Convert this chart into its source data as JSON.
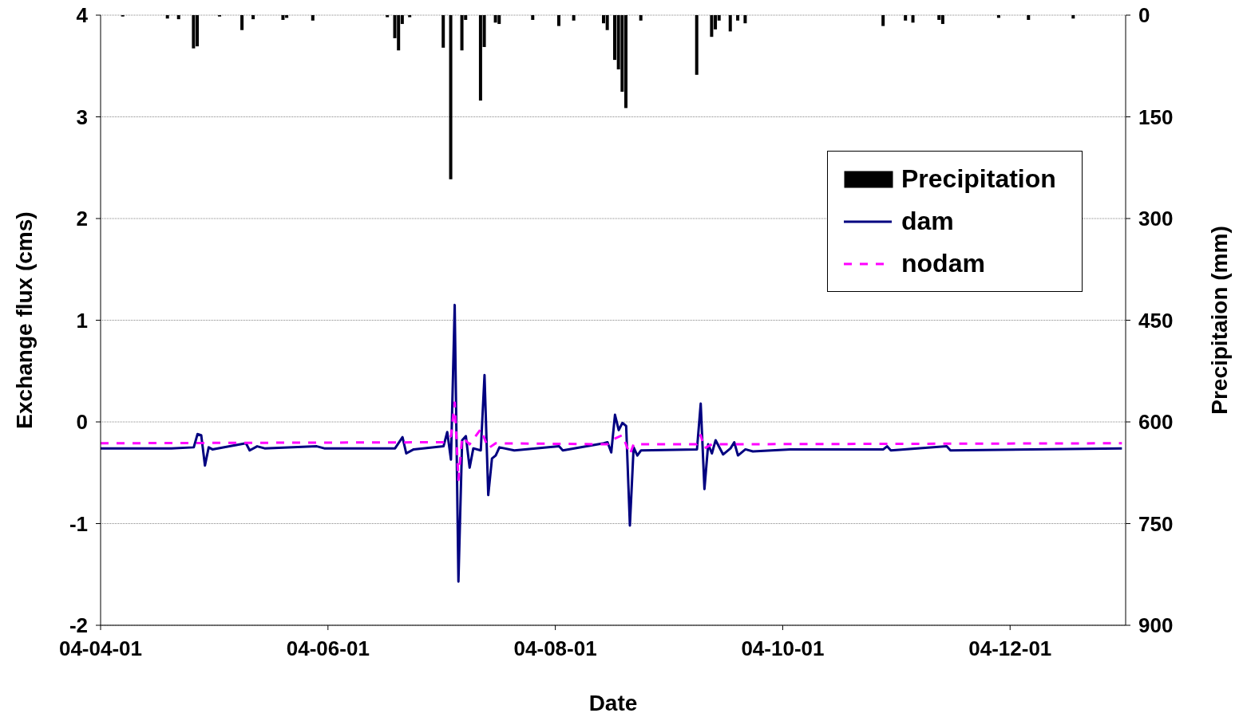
{
  "chart_data": {
    "type": "line",
    "xlabel": "Date",
    "ylabel": "Exchange flux (cms)",
    "y2label": "Precipitaion (mm)",
    "xlim": [
      "2004-04-01",
      "2005-01-01"
    ],
    "xticks": [
      {
        "value": "2004-04-01",
        "label": "04-04-01"
      },
      {
        "value": "2004-06-01",
        "label": "04-06-01"
      },
      {
        "value": "2004-08-01",
        "label": "04-08-01"
      },
      {
        "value": "2004-10-01",
        "label": "04-10-01"
      },
      {
        "value": "2004-12-01",
        "label": "04-12-01"
      }
    ],
    "ylim": [
      -2,
      4
    ],
    "yticks": [
      -2,
      -1,
      0,
      1,
      2,
      3,
      4
    ],
    "y2lim": [
      900,
      0
    ],
    "y2ticks": [
      0,
      150,
      300,
      450,
      600,
      750,
      900
    ],
    "grid": "y",
    "legend": "top right",
    "marker": "none",
    "series": [
      {
        "name": "Precipitation",
        "type": "bar",
        "axis": "y2",
        "color": "#000000",
        "x": [
          "2004-04-07",
          "2004-04-19",
          "2004-04-22",
          "2004-04-26",
          "2004-04-27",
          "2004-05-03",
          "2004-05-09",
          "2004-05-12",
          "2004-05-20",
          "2004-05-21",
          "2004-05-28",
          "2004-06-17",
          "2004-06-19",
          "2004-06-20",
          "2004-06-21",
          "2004-06-23",
          "2004-07-02",
          "2004-07-04",
          "2004-07-07",
          "2004-07-08",
          "2004-07-12",
          "2004-07-13",
          "2004-07-16",
          "2004-07-17",
          "2004-07-26",
          "2004-08-02",
          "2004-08-06",
          "2004-08-14",
          "2004-08-15",
          "2004-08-17",
          "2004-08-18",
          "2004-08-19",
          "2004-08-20",
          "2004-08-24",
          "2004-09-08",
          "2004-09-12",
          "2004-09-13",
          "2004-09-14",
          "2004-09-17",
          "2004-09-19",
          "2004-09-21",
          "2004-10-28",
          "2004-11-03",
          "2004-11-05",
          "2004-11-12",
          "2004-11-13",
          "2004-11-28",
          "2004-12-06",
          "2004-12-18"
        ],
        "values": [
          2,
          5,
          6,
          49,
          46,
          2,
          22,
          6,
          7,
          4,
          8,
          3,
          34,
          52,
          13,
          3,
          48,
          242,
          52,
          7,
          126,
          47,
          11,
          13,
          7,
          16,
          8,
          12,
          22,
          66,
          80,
          113,
          137,
          8,
          88,
          32,
          21,
          8,
          24,
          8,
          12,
          16,
          8,
          11,
          7,
          13,
          4,
          7,
          5
        ]
      },
      {
        "name": "dam",
        "color": "#000080",
        "line_style": "solid",
        "x": [
          "2004-04-01",
          "2004-04-20",
          "2004-04-26",
          "2004-04-27",
          "2004-04-28",
          "2004-04-29",
          "2004-04-30",
          "2004-05-01",
          "2004-05-10",
          "2004-05-11",
          "2004-05-13",
          "2004-05-15",
          "2004-05-29",
          "2004-05-31",
          "2004-06-19",
          "2004-06-21",
          "2004-06-22",
          "2004-06-24",
          "2004-07-02",
          "2004-07-03",
          "2004-07-04",
          "2004-07-05",
          "2004-07-06",
          "2004-07-07",
          "2004-07-08",
          "2004-07-09",
          "2004-07-10",
          "2004-07-12",
          "2004-07-13",
          "2004-07-14",
          "2004-07-15",
          "2004-07-16",
          "2004-07-17",
          "2004-07-21",
          "2004-08-02",
          "2004-08-03",
          "2004-08-14",
          "2004-08-15",
          "2004-08-16",
          "2004-08-17",
          "2004-08-18",
          "2004-08-19",
          "2004-08-20",
          "2004-08-21",
          "2004-08-22",
          "2004-08-23",
          "2004-08-24",
          "2004-09-08",
          "2004-09-09",
          "2004-09-10",
          "2004-09-11",
          "2004-09-12",
          "2004-09-13",
          "2004-09-15",
          "2004-09-17",
          "2004-09-18",
          "2004-09-19",
          "2004-09-21",
          "2004-09-23",
          "2004-10-03",
          "2004-10-28",
          "2004-10-29",
          "2004-10-30",
          "2004-11-14",
          "2004-11-15",
          "2004-12-31"
        ],
        "values": [
          -0.26,
          -0.26,
          -0.25,
          -0.12,
          -0.13,
          -0.43,
          -0.25,
          -0.27,
          -0.21,
          -0.28,
          -0.24,
          -0.26,
          -0.24,
          -0.26,
          -0.26,
          -0.15,
          -0.31,
          -0.27,
          -0.24,
          -0.1,
          -0.37,
          1.15,
          -1.57,
          -0.18,
          -0.14,
          -0.45,
          -0.26,
          -0.28,
          0.46,
          -0.72,
          -0.36,
          -0.33,
          -0.25,
          -0.28,
          -0.24,
          -0.28,
          -0.21,
          -0.2,
          -0.3,
          0.07,
          -0.08,
          -0.01,
          -0.04,
          -1.02,
          -0.25,
          -0.33,
          -0.28,
          -0.27,
          0.18,
          -0.66,
          -0.22,
          -0.31,
          -0.18,
          -0.32,
          -0.26,
          -0.2,
          -0.33,
          -0.27,
          -0.29,
          -0.27,
          -0.27,
          -0.24,
          -0.28,
          -0.24,
          -0.28,
          -0.26
        ]
      },
      {
        "name": "nodam",
        "color": "#ff00ff",
        "line_style": "dashed",
        "x": [
          "2004-04-01",
          "2004-07-02",
          "2004-07-04",
          "2004-07-05",
          "2004-07-06",
          "2004-07-07",
          "2004-07-09",
          "2004-07-12",
          "2004-07-14",
          "2004-07-16",
          "2004-08-15",
          "2004-08-16",
          "2004-08-19",
          "2004-08-21",
          "2004-08-22",
          "2004-09-08",
          "2004-09-09",
          "2004-09-10",
          "2004-09-12",
          "2004-12-31"
        ],
        "values": [
          -0.21,
          -0.2,
          -0.14,
          0.19,
          -0.57,
          -0.15,
          -0.22,
          -0.07,
          -0.26,
          -0.21,
          -0.22,
          -0.18,
          -0.13,
          -0.32,
          -0.22,
          -0.22,
          -0.13,
          -0.26,
          -0.22,
          -0.21
        ]
      }
    ]
  }
}
